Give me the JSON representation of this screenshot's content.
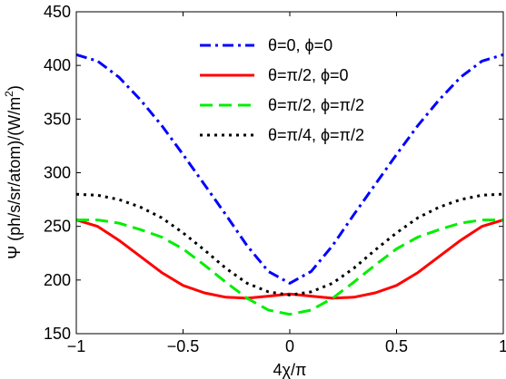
{
  "chart_data": {
    "type": "line",
    "title": "",
    "xlabel": "4χ/π",
    "ylabel": "Ψ  (ph/s/sr/atom)/(W/m",
    "ylabel_sup": "2",
    "ylabel_end": ")",
    "xlim": [
      -1,
      1
    ],
    "ylim": [
      150,
      450
    ],
    "xticks": [
      -1,
      -0.5,
      0,
      0.5,
      1
    ],
    "xtick_labels": [
      "−1",
      "−0.5",
      "0",
      "0.5",
      "1"
    ],
    "yticks": [
      150,
      200,
      250,
      300,
      350,
      400,
      450
    ],
    "ytick_labels": [
      "150",
      "200",
      "250",
      "300",
      "350",
      "400",
      "450"
    ],
    "grid": false,
    "legend_position": "top-right",
    "x": [
      -1,
      -0.9,
      -0.8,
      -0.7,
      -0.6,
      -0.5,
      -0.4,
      -0.3,
      -0.2,
      -0.1,
      0,
      0.1,
      0.2,
      0.3,
      0.4,
      0.5,
      0.6,
      0.7,
      0.8,
      0.9,
      1
    ],
    "series": [
      {
        "name": "θ=0, ϕ=0",
        "color": "#0000ff",
        "dash": "dashdot",
        "values": [
          410,
          404,
          389,
          368,
          344,
          317,
          289,
          261,
          232,
          208,
          197,
          208,
          232,
          261,
          289,
          317,
          344,
          368,
          389,
          404,
          410
        ]
      },
      {
        "name": "θ=π/2, ϕ=0",
        "color": "#ff0000",
        "dash": "solid",
        "values": [
          256,
          250,
          237,
          222,
          207,
          195,
          188,
          184,
          183,
          185,
          187,
          185,
          183,
          184,
          188,
          195,
          207,
          222,
          237,
          250,
          256
        ]
      },
      {
        "name": "θ=π/2, ϕ=π/2",
        "color": "#00ee00",
        "dash": "dashed",
        "values": [
          256,
          256,
          253,
          247,
          240,
          229,
          214,
          198,
          183,
          172,
          168,
          172,
          183,
          198,
          214,
          229,
          240,
          247,
          253,
          256,
          256
        ]
      },
      {
        "name": "θ=π/4, ϕ=π/2",
        "color": "#000000",
        "dash": "dotted",
        "values": [
          280,
          279,
          275,
          268,
          258,
          244,
          228,
          211,
          197,
          189,
          186,
          189,
          197,
          211,
          228,
          244,
          258,
          268,
          275,
          279,
          280
        ]
      }
    ]
  }
}
